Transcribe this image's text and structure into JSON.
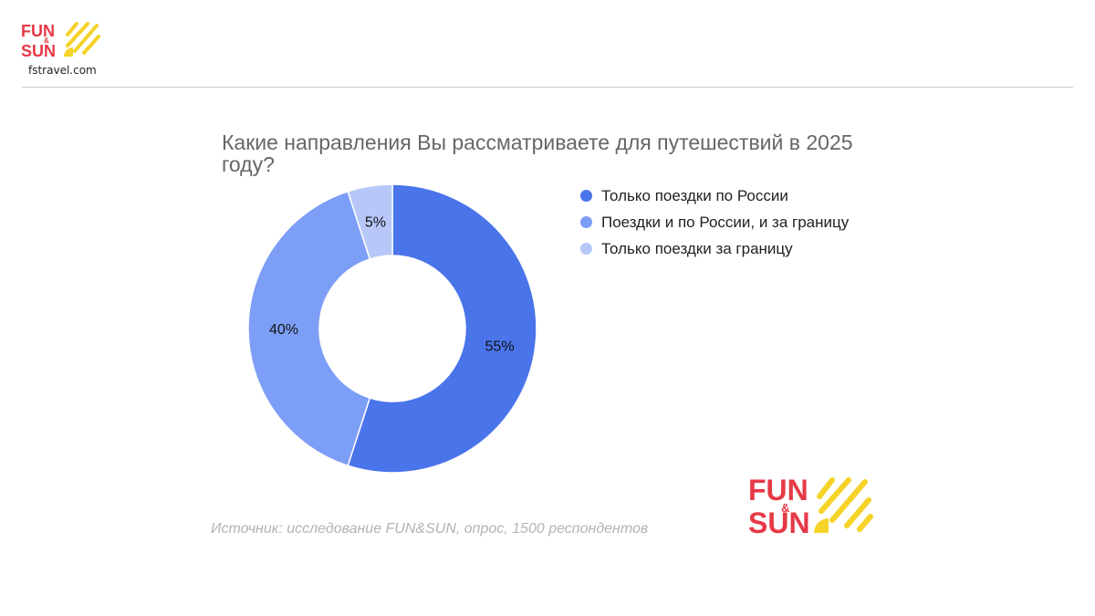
{
  "header": {
    "logo_alt": "FUN & SUN",
    "site_url": "fstravel.com"
  },
  "chart_data": {
    "type": "pie",
    "subtype": "donut",
    "title": "Какие направления Вы рассматриваете для путешествий в 2025 году?",
    "slices": [
      {
        "label": "Только поездки по России",
        "value": 55,
        "display": "55%",
        "color": "#4a74ea"
      },
      {
        "label": "Поездки и по России, и за границу",
        "value": 40,
        "display": "40%",
        "color": "#7d9ef7"
      },
      {
        "label": "Только поездки за границу",
        "value": 5,
        "display": "5%",
        "color": "#b7c8f8"
      }
    ],
    "legend_position": "right"
  },
  "footer": {
    "source": "Источник: исследование FUN&SUN, опрос, 1500 респондентов",
    "logo_alt": "FUN & SUN"
  },
  "colors": {
    "brand_red": "#e63946",
    "brand_yellow": "#f5d327"
  }
}
